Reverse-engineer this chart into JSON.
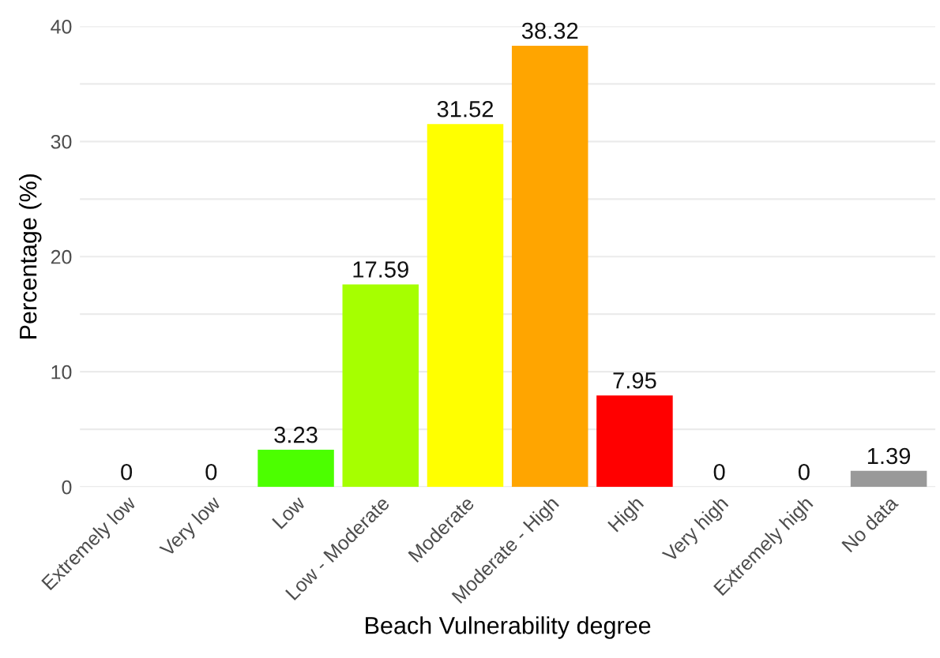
{
  "chart_data": {
    "type": "bar",
    "xlabel": "Beach Vulnerability degree",
    "ylabel": "Percentage (%)",
    "categories": [
      "Extremely low",
      "Very low",
      "Low",
      "Low - Moderate",
      "Moderate",
      "Moderate - High",
      "High",
      "Very high",
      "Extremely high",
      "No data"
    ],
    "values": [
      0,
      0,
      3.23,
      17.59,
      31.52,
      38.32,
      7.95,
      0,
      0,
      1.39
    ],
    "colors": [
      "#4cff00",
      "#4cff00",
      "#4cff00",
      "#a6ff00",
      "#ffff00",
      "#ffa500",
      "#ff0000",
      "#ff0000",
      "#ff0000",
      "#999999"
    ],
    "data_labels": true,
    "ylim": [
      0,
      40
    ],
    "yticks": [
      0,
      {
        "value": 5,
        "label": null
      },
      10,
      {
        "value": 15,
        "label": null
      },
      20,
      {
        "value": 25,
        "label": null
      },
      30,
      {
        "value": 35,
        "label": null
      },
      40
    ],
    "grid": "y"
  }
}
